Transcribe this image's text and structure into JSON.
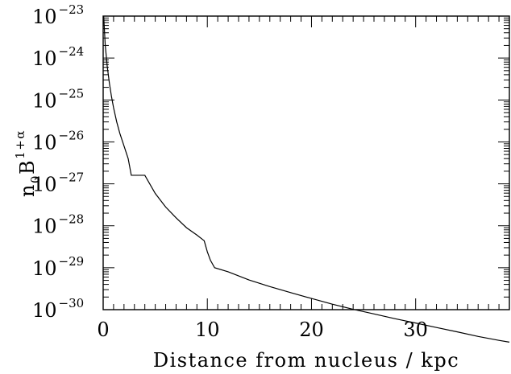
{
  "chart_data": {
    "type": "line",
    "title": "",
    "xlabel": "Distance from nucleus / kpc",
    "ylabel": {
      "base": "n",
      "sub": "0",
      "main": "B",
      "sup": "1+α"
    },
    "xlim": [
      0,
      39
    ],
    "ylim_exponent": [
      -30,
      -23
    ],
    "yscale": "log",
    "x_ticks": [
      0,
      10,
      20,
      30
    ],
    "y_ticks": [
      {
        "base": "10",
        "exp": "−23",
        "value": 1e-23
      },
      {
        "base": "10",
        "exp": "−24",
        "value": 1e-24
      },
      {
        "base": "10",
        "exp": "−25",
        "value": 1e-25
      },
      {
        "base": "10",
        "exp": "−26",
        "value": 1e-26
      },
      {
        "base": "10",
        "exp": "−27",
        "value": 1e-27
      },
      {
        "base": "10",
        "exp": "−28",
        "value": 1e-28
      },
      {
        "base": "10",
        "exp": "−29",
        "value": 1e-29
      },
      {
        "base": "10",
        "exp": "−30",
        "value": 1e-30
      }
    ],
    "grid": false,
    "series": [
      {
        "color": "#000000",
        "x": [
          0.05,
          0.2,
          0.4,
          0.6,
          0.8,
          1.0,
          1.3,
          1.6,
          2.0,
          2.4,
          2.7,
          3.5,
          4.0,
          5.0,
          6.0,
          7.0,
          8.0,
          9.0,
          9.7,
          10.0,
          10.3,
          10.7,
          12,
          14,
          16,
          18,
          20,
          22,
          24,
          26,
          28,
          30,
          32,
          34,
          36,
          38,
          39
        ],
        "y": [
          1e-23,
          2e-24,
          6e-25,
          2.5e-25,
          1.2e-25,
          6.5e-26,
          3e-26,
          1.6e-26,
          8e-27,
          4e-27,
          1.6e-27,
          1.6e-27,
          1.6e-27,
          5.9e-28,
          2.8e-28,
          1.55e-28,
          9e-29,
          6e-29,
          4.4e-29,
          2.4e-29,
          1.5e-29,
          1e-29,
          8e-30,
          5.1e-30,
          3.55e-30,
          2.55e-30,
          1.85e-30,
          1.35e-30,
          1.02e-30,
          7.9e-31,
          6.1e-31,
          4.8e-31,
          3.75e-31,
          2.95e-31,
          2.3e-31,
          1.85e-31,
          1.68e-31
        ]
      }
    ]
  }
}
